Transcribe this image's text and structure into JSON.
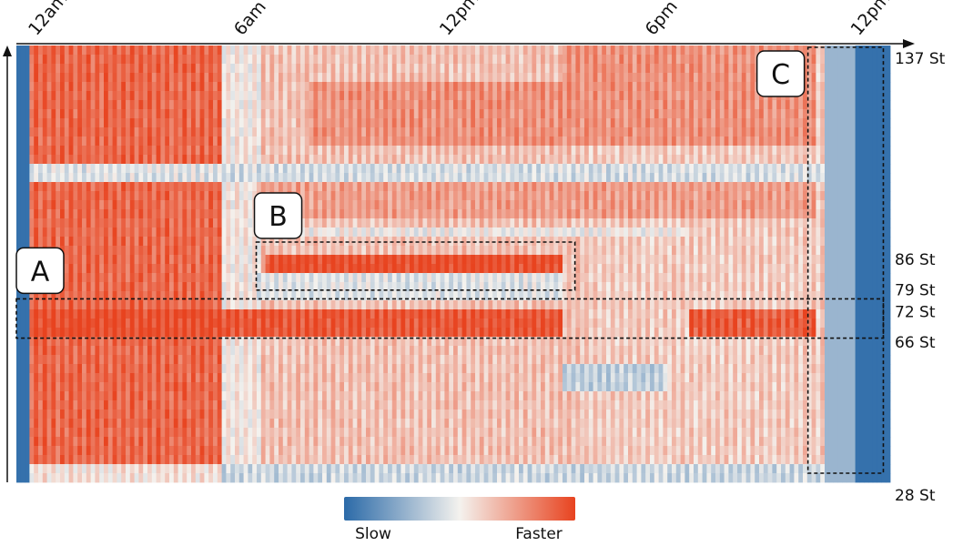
{
  "chart_data": {
    "type": "heatmap",
    "title": "",
    "xlabel": "",
    "ylabel": "",
    "x_ticks": [
      {
        "label": "12am",
        "hour": 0
      },
      {
        "label": "6am",
        "hour": 6
      },
      {
        "label": "12pm",
        "hour": 12
      },
      {
        "label": "6pm",
        "hour": 18
      },
      {
        "label": "12pm",
        "hour": 24
      }
    ],
    "x_range_hours": [
      0,
      25.5
    ],
    "y_ticks": [
      {
        "label": "137 St",
        "pos": 0.0
      },
      {
        "label": "86 St",
        "pos": 0.46
      },
      {
        "label": "79 St",
        "pos": 0.53
      },
      {
        "label": "72 St",
        "pos": 0.58
      },
      {
        "label": "66 St",
        "pos": 0.65
      },
      {
        "label": "28 St",
        "pos": 1.0
      }
    ],
    "color_scale": {
      "low_label": "Slow",
      "high_label": "Faster",
      "low_color": "#2b6aa8",
      "mid_color": "#f4f2ee",
      "high_color": "#e8431f"
    },
    "annotations": [
      {
        "label": "A",
        "hours": [
          0,
          25.3
        ],
        "stations": [
          0.58,
          0.67
        ]
      },
      {
        "label": "B",
        "hours": [
          7,
          16.3
        ],
        "stations": [
          0.45,
          0.56
        ]
      },
      {
        "label": "C",
        "hours": [
          23.1,
          25.3
        ],
        "stations": [
          0.0,
          1.0
        ]
      }
    ]
  }
}
